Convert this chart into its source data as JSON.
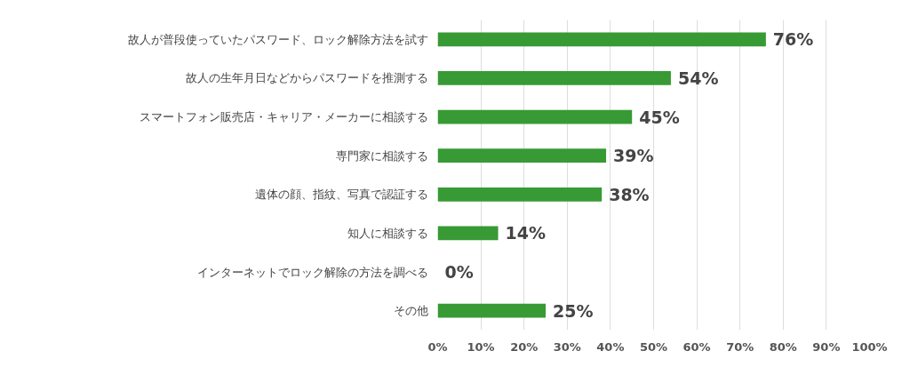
{
  "chart_data": {
    "type": "bar",
    "orientation": "horizontal",
    "categories": [
      "故人が普段使っていたパスワード、ロック解除方法を試す",
      "故人の生年月日などからパスワードを推測する",
      "スマートフォン販売店・キャリア・メーカーに相談する",
      "専門家に相談する",
      "遺体の顔、指紋、写真で認証する",
      "知人に相談する",
      "インターネットでロック解除の方法を調べる",
      "その他"
    ],
    "values": [
      76,
      54,
      45,
      39,
      38,
      14,
      0,
      25
    ],
    "value_labels": [
      "76%",
      "54%",
      "45%",
      "39%",
      "38%",
      "14%",
      "0%",
      "25%"
    ],
    "color": "#379a34",
    "xlim": [
      0,
      100
    ],
    "xticks": [
      {
        "value": 0,
        "label": "0%"
      },
      {
        "value": 10,
        "label": "10%"
      },
      {
        "value": 20,
        "label": "20%"
      },
      {
        "value": 30,
        "label": "30%"
      },
      {
        "value": 40,
        "label": "40%"
      },
      {
        "value": 50,
        "label": "50%"
      },
      {
        "value": 60,
        "label": "60%"
      },
      {
        "value": 70,
        "label": "70%"
      },
      {
        "value": 80,
        "label": "80%"
      },
      {
        "value": 90,
        "label": "90%"
      },
      {
        "value": 100,
        "label": "100%"
      }
    ],
    "grid": "x"
  }
}
